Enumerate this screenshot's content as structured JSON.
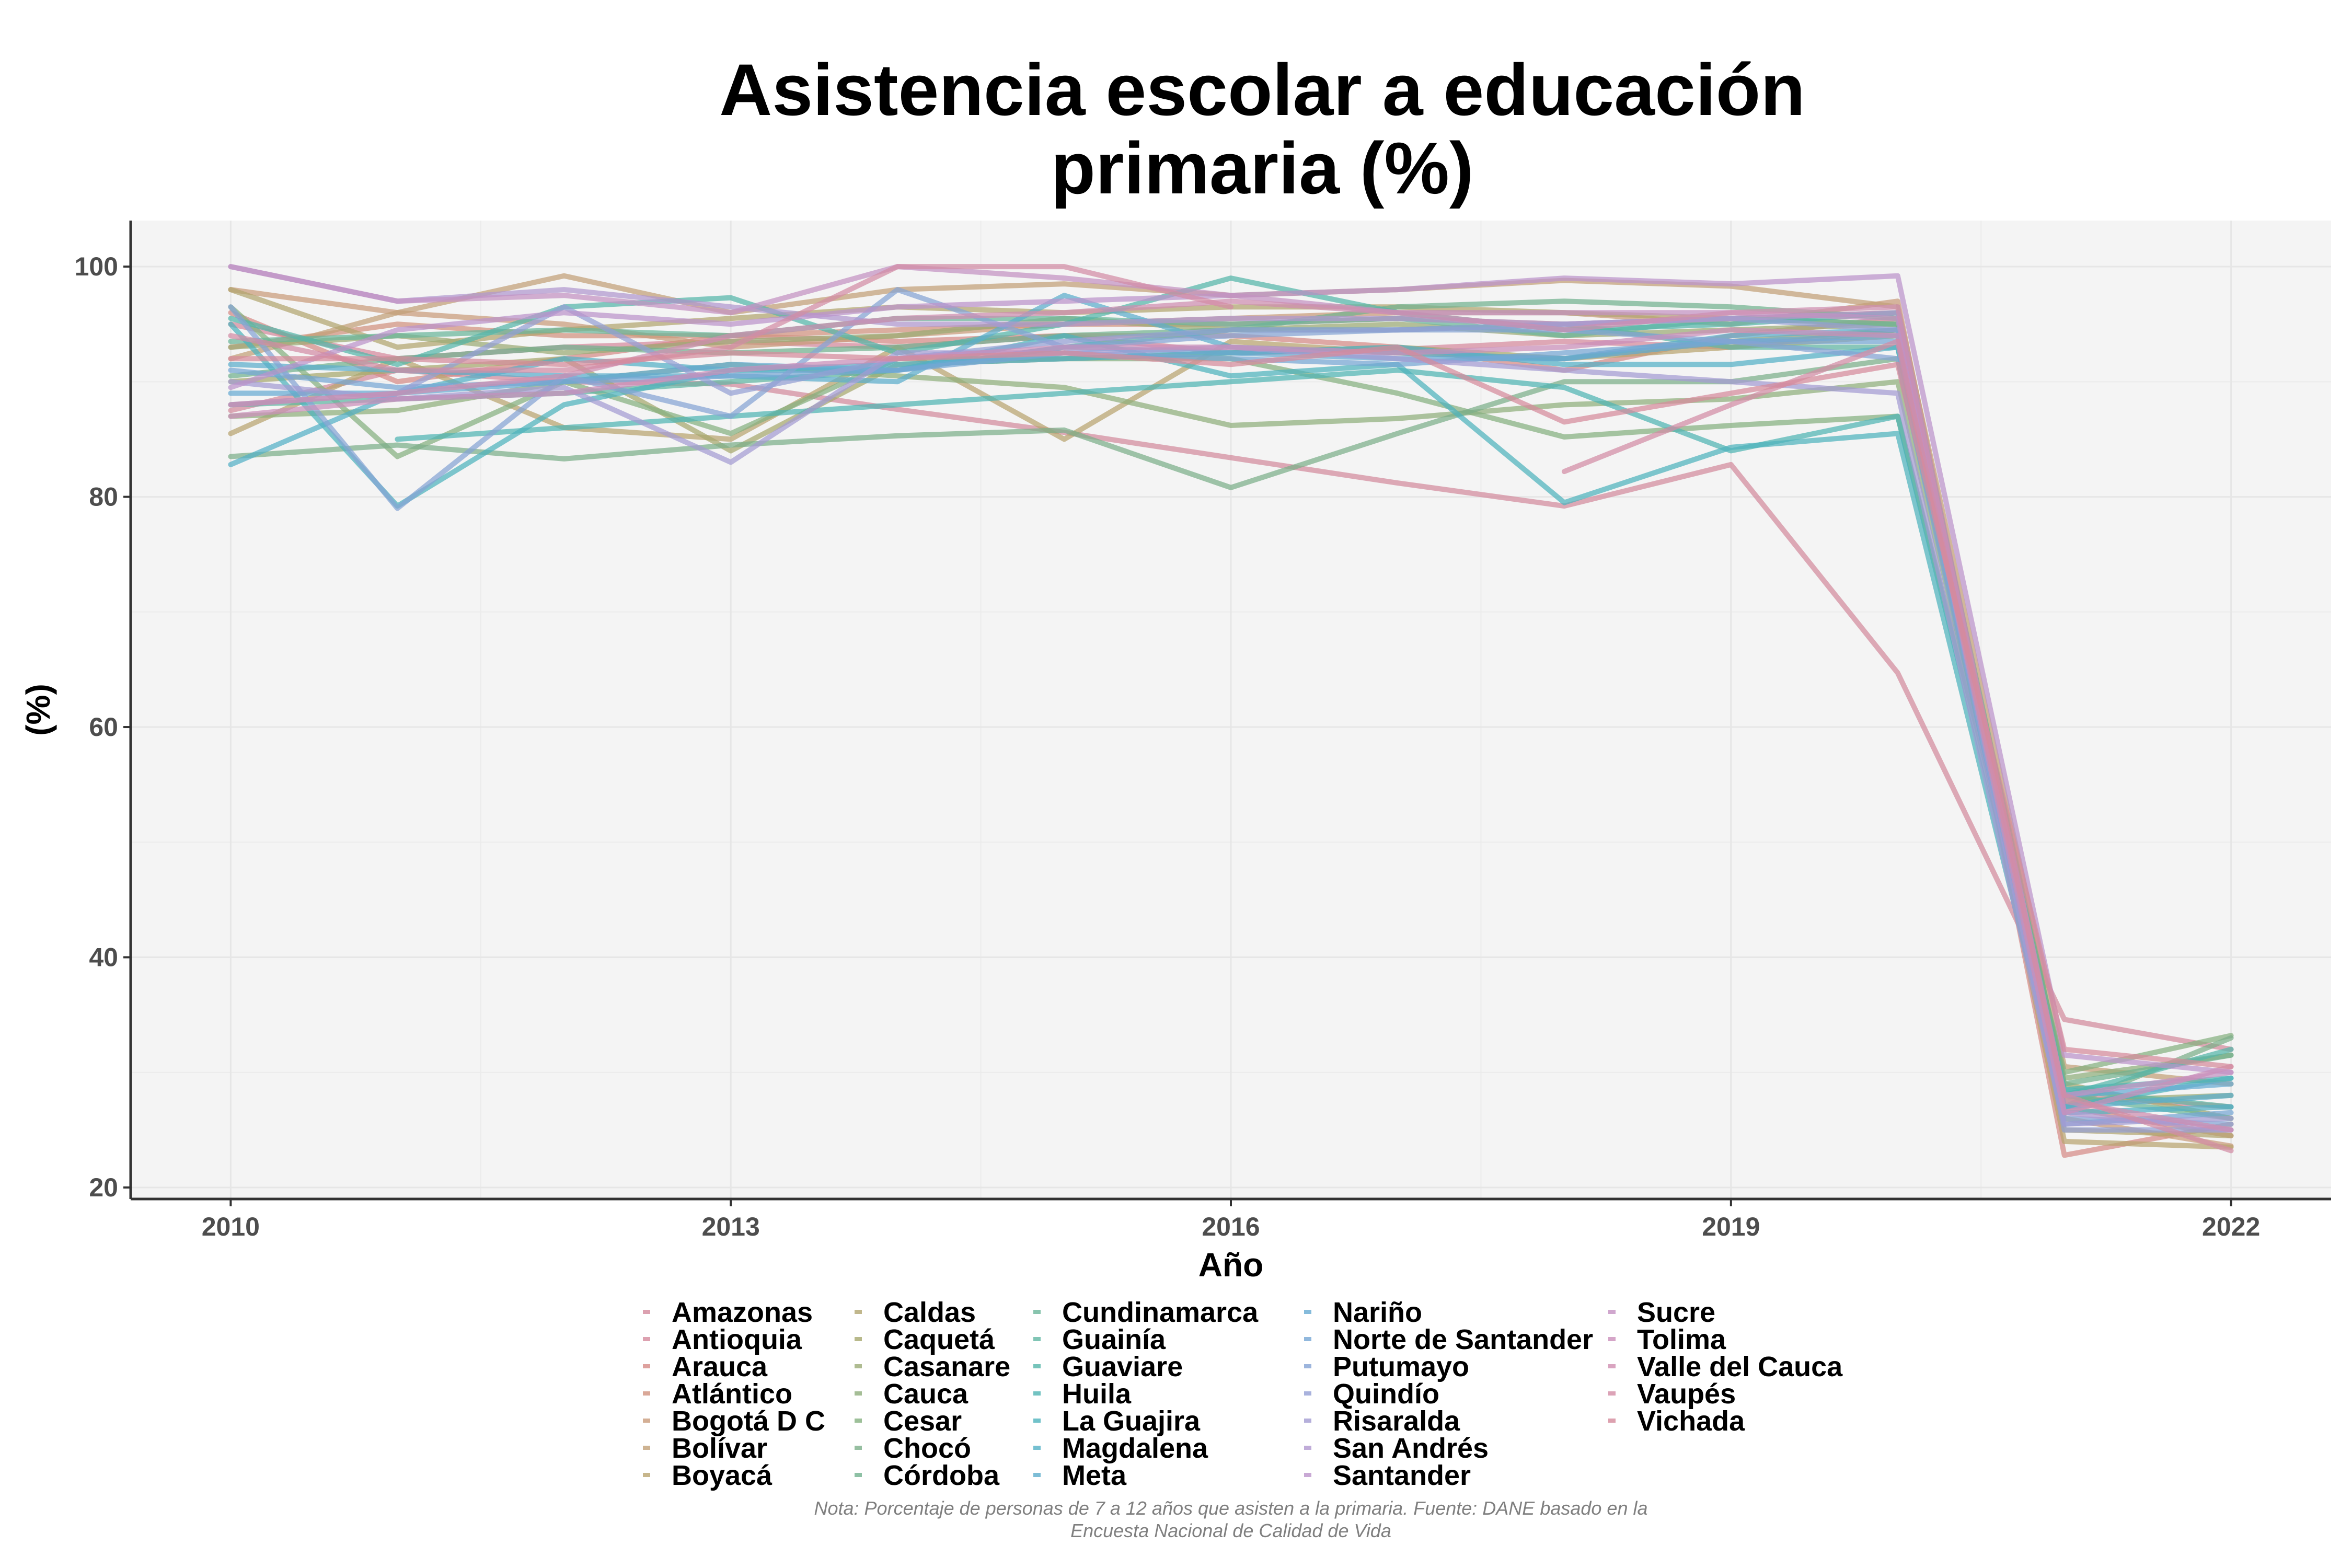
{
  "chart_data": {
    "type": "line",
    "title": [
      "Asistencia escolar a educación",
      "primaria (%)"
    ],
    "xlabel": "Año",
    "ylabel": "(%)",
    "xlim": [
      2009.4,
      2022.6
    ],
    "ylim": [
      19,
      104
    ],
    "x_ticks": [
      2010,
      2013,
      2016,
      2019,
      2022
    ],
    "y_ticks": [
      20,
      40,
      60,
      80,
      100
    ],
    "x_tick_labels": [
      "2010",
      "2013",
      "2016",
      "2019",
      "2022"
    ],
    "y_tick_labels": [
      "20",
      "40",
      "60",
      "80",
      "100"
    ],
    "grid": true,
    "legend_position": "bottom",
    "note": [
      "Nota: Porcentaje de personas de 7 a 12 años que asisten a la primaria. Fuente: DANE basado en la",
      "Encuesta Nacional de Calidad de Vida"
    ],
    "x": [
      2010,
      2011,
      2012,
      2013,
      2014,
      2015,
      2016,
      2017,
      2018,
      2019,
      2020,
      2021,
      2022
    ],
    "series": [
      {
        "name": "Amazonas",
        "color": "#d38a9c",
        "values": [
          87.5,
          91.0,
          90.0,
          89.8,
          87.6,
          85.6,
          83.4,
          81.2,
          79.2,
          82.8,
          64.7,
          34.6,
          32.0
        ]
      },
      {
        "name": "Antioquia",
        "color": "#d5899c",
        "values": [
          95.0,
          92.0,
          93.0,
          93.5,
          93.0,
          94.0,
          92.5,
          92.8,
          93.5,
          93.0,
          94.5,
          28.0,
          27.0
        ]
      },
      {
        "name": "Arauca",
        "color": "#d68a86",
        "values": [
          96.0,
          90.0,
          92.0,
          94.0,
          93.5,
          94.0,
          94.0,
          93.0,
          91.0,
          94.0,
          95.5,
          22.8,
          25.5
        ]
      },
      {
        "name": "Atlántico",
        "color": "#d1927e",
        "values": [
          93.0,
          95.0,
          94.0,
          94.0,
          94.5,
          95.0,
          95.0,
          95.5,
          95.0,
          95.5,
          96.0,
          27.0,
          24.5
        ]
      },
      {
        "name": "Bogotá D C",
        "color": "#c99b7a",
        "values": [
          98.0,
          96.0,
          95.0,
          93.0,
          94.0,
          95.0,
          95.5,
          96.0,
          96.0,
          95.0,
          97.0,
          26.0,
          23.6
        ]
      },
      {
        "name": "Bolívar",
        "color": "#c2a077",
        "values": [
          92.0,
          96.0,
          99.2,
          96.0,
          98.0,
          98.5,
          97.5,
          98.0,
          98.8,
          98.3,
          96.5,
          30.5,
          29.0
        ]
      },
      {
        "name": "Boyacá",
        "color": "#b9a46f",
        "values": [
          85.5,
          92.0,
          86.0,
          85.0,
          93.0,
          85.0,
          93.5,
          92.5,
          92.0,
          93.0,
          94.0,
          24.0,
          23.5
        ]
      },
      {
        "name": "Caldas",
        "color": "#b1a56f",
        "values": [
          98.0,
          93.0,
          94.5,
          95.5,
          96.5,
          96.0,
          96.5,
          96.5,
          96.0,
          95.5,
          95.0,
          25.0,
          24.5
        ]
      },
      {
        "name": "Caquetá",
        "color": "#a6a86e",
        "values": [
          90.0,
          91.0,
          92.0,
          84.0,
          91.5,
          92.0,
          92.5,
          93.0,
          92.0,
          93.5,
          94.5,
          29.0,
          26.0
        ]
      },
      {
        "name": "Casanare",
        "color": "#9bab75",
        "values": [
          93.0,
          94.0,
          92.5,
          93.5,
          94.0,
          95.5,
          94.5,
          95.0,
          94.0,
          94.5,
          95.0,
          27.5,
          28.0
        ]
      },
      {
        "name": "Cauca",
        "color": "#8fae7c",
        "values": [
          87.0,
          87.5,
          90.0,
          91.5,
          90.5,
          89.5,
          86.2,
          86.8,
          88.0,
          88.5,
          90.0,
          29.5,
          31.5
        ]
      },
      {
        "name": "Cesar",
        "color": "#85b07f",
        "values": [
          96.5,
          83.5,
          90.0,
          85.5,
          92.0,
          92.0,
          92.0,
          89.0,
          85.2,
          86.2,
          87.0,
          30.0,
          33.2
        ]
      },
      {
        "name": "Chocó",
        "color": "#7caf89",
        "values": [
          83.5,
          84.5,
          83.3,
          84.5,
          85.3,
          85.8,
          80.8,
          85.5,
          90.0,
          90.0,
          92.0,
          27.0,
          33.0
        ]
      },
      {
        "name": "Córdoba",
        "color": "#72b28f",
        "values": [
          90.5,
          92.0,
          93.0,
          92.5,
          93.0,
          94.0,
          94.5,
          96.5,
          97.0,
          96.5,
          95.5,
          29.0,
          31.5
        ]
      },
      {
        "name": "Cundinamarca",
        "color": "#6ab59a",
        "values": [
          93.5,
          94.0,
          94.5,
          94.0,
          95.5,
          95.5,
          95.0,
          95.5,
          94.0,
          95.5,
          95.0,
          28.0,
          26.0
        ]
      },
      {
        "name": "Guainía",
        "color": "#60b6a2",
        "values": [
          88.0,
          88.5,
          89.0,
          90.0,
          91.0,
          93.0,
          94.5,
          94.5,
          95.0,
          93.0,
          93.0,
          28.5,
          27.0
        ]
      },
      {
        "name": "Guaviare",
        "color": "#54b5a9",
        "values": [
          95.5,
          91.5,
          96.5,
          97.3,
          92.5,
          95.0,
          99.0,
          96.0,
          94.5,
          95.0,
          96.0,
          28.0,
          32.0
        ]
      },
      {
        "name": "Huila",
        "color": "#4fb4b3",
        "values": [
          null,
          85.0,
          86.0,
          87.0,
          88.0,
          89.0,
          90.0,
          91.0,
          89.5,
          84.0,
          87.0,
          28.5,
          29.5
        ]
      },
      {
        "name": "La Guajira",
        "color": "#4db3bd",
        "values": [
          95.0,
          79.2,
          88.0,
          91.0,
          91.0,
          94.0,
          90.5,
          91.5,
          79.5,
          84.3,
          85.5,
          27.0,
          29.5
        ]
      },
      {
        "name": "Magdalena",
        "color": "#53b0c6",
        "values": [
          82.8,
          89.0,
          92.0,
          91.0,
          91.5,
          92.0,
          92.5,
          93.0,
          91.5,
          91.5,
          93.0,
          26.5,
          27.0
        ]
      },
      {
        "name": "Meta",
        "color": "#5cadcc",
        "values": [
          91.5,
          91.0,
          90.5,
          90.5,
          90.0,
          97.5,
          93.0,
          92.5,
          92.0,
          94.0,
          94.5,
          27.0,
          28.0
        ]
      },
      {
        "name": "Nariño",
        "color": "#67aad2",
        "values": [
          89.0,
          89.0,
          90.0,
          91.5,
          91.0,
          93.0,
          92.5,
          92.0,
          92.0,
          93.5,
          94.0,
          28.0,
          29.0
        ]
      },
      {
        "name": "Norte de Santander",
        "color": "#76a6d4",
        "values": [
          91.0,
          89.5,
          90.0,
          90.5,
          91.0,
          92.5,
          92.0,
          91.5,
          92.5,
          93.5,
          93.5,
          25.5,
          26.5
        ]
      },
      {
        "name": "Putumayo",
        "color": "#85a3d4",
        "values": [
          96.5,
          79.0,
          90.5,
          87.0,
          98.0,
          93.0,
          94.0,
          94.5,
          94.5,
          93.5,
          92.0,
          26.0,
          25.5
        ]
      },
      {
        "name": "Quindío",
        "color": "#949fd4",
        "values": [
          88.0,
          89.0,
          96.5,
          89.0,
          92.0,
          93.5,
          94.5,
          94.5,
          95.0,
          95.5,
          94.5,
          25.0,
          25.0
        ]
      },
      {
        "name": "Risaralda",
        "color": "#a39bd2",
        "values": [
          90.0,
          88.5,
          89.5,
          83.0,
          92.5,
          92.5,
          93.0,
          92.0,
          91.0,
          90.0,
          89.0,
          25.5,
          26.0
        ]
      },
      {
        "name": "San Andrés",
        "color": "#b097cf",
        "values": [
          100.0,
          97.0,
          98.0,
          96.5,
          95.0,
          95.0,
          95.5,
          95.5,
          95.0,
          95.5,
          96.0,
          26.5,
          25.0
        ]
      },
      {
        "name": "Santander",
        "color": "#bb93ca",
        "values": [
          89.5,
          94.5,
          96.0,
          95.0,
          96.5,
          97.0,
          97.5,
          98.0,
          99.0,
          98.5,
          99.2,
          31.5,
          30.0
        ]
      },
      {
        "name": "Sucre",
        "color": "#c491c2",
        "values": [
          100.0,
          97.0,
          97.5,
          96.0,
          100.0,
          99.0,
          97.5,
          96.0,
          96.0,
          96.0,
          95.5,
          28.0,
          30.0
        ]
      },
      {
        "name": "Tolima",
        "color": "#ca8fba",
        "values": [
          87.0,
          88.5,
          89.0,
          91.0,
          92.0,
          93.0,
          93.0,
          92.5,
          93.0,
          94.5,
          94.0,
          26.5,
          30.5
        ]
      },
      {
        "name": "Valle del Cauca",
        "color": "#cf8db0",
        "values": [
          88.0,
          89.0,
          90.5,
          94.0,
          95.5,
          96.0,
          97.0,
          96.0,
          94.5,
          96.0,
          96.5,
          27.5,
          25.0
        ]
      },
      {
        "name": "Vaupés",
        "color": "#d38ca5",
        "values": [
          94.0,
          91.0,
          91.0,
          93.0,
          100.0,
          100.0,
          96.5,
          null,
          82.2,
          88.0,
          93.5,
          28.0,
          23.2
        ]
      },
      {
        "name": "Vichada",
        "color": "#d58a9b",
        "values": [
          92.0,
          92.0,
          91.5,
          92.5,
          92.0,
          92.5,
          91.5,
          93.0,
          86.5,
          89.0,
          91.5,
          32.0,
          30.5
        ]
      }
    ]
  }
}
